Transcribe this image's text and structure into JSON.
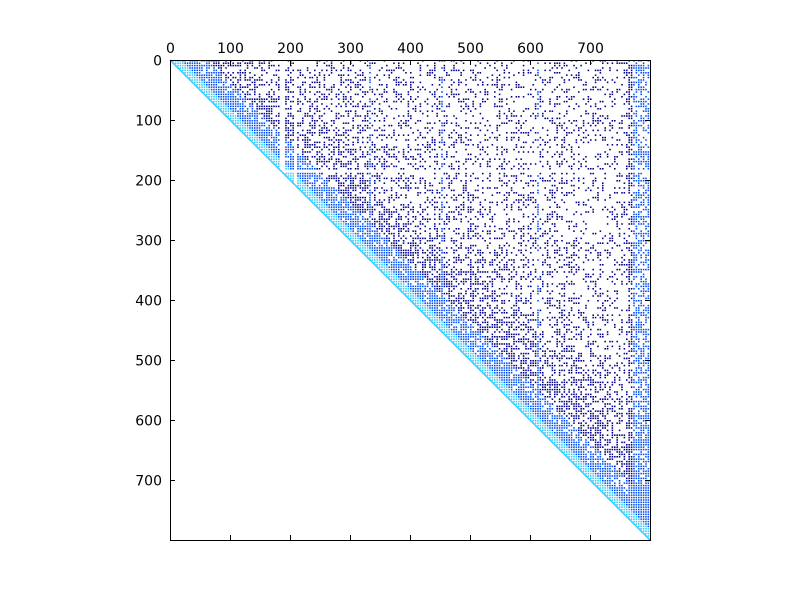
{
  "chart_data": {
    "type": "heatmap",
    "subtype": "upper-triangular sparse matrix (matshow)",
    "title": "",
    "xlabel": "",
    "ylabel": "",
    "x_axis_position": "top",
    "xlim": [
      0,
      799
    ],
    "ylim": [
      799,
      0
    ],
    "x_ticks": [
      0,
      100,
      200,
      300,
      400,
      500,
      600,
      700
    ],
    "y_ticks": [
      0,
      100,
      200,
      300,
      400,
      500,
      600,
      700
    ],
    "matrix_size": 800,
    "grid": false,
    "legend": "none",
    "colormap": {
      "low": "#00008b",
      "mid": "#0050ff",
      "high": "#33ccff",
      "empty": "#ffffff"
    },
    "blank_bands": {
      "rows": [
        185,
        186,
        187
      ],
      "cols": [
        187,
        188,
        189,
        210,
        211
      ]
    },
    "highlight_columns": [
      335,
      455,
      615
    ]
  }
}
